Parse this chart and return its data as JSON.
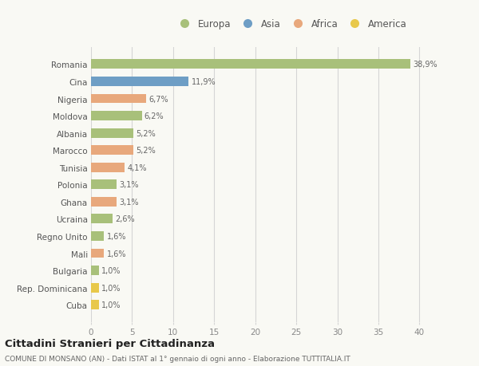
{
  "countries": [
    "Romania",
    "Cina",
    "Nigeria",
    "Moldova",
    "Albania",
    "Marocco",
    "Tunisia",
    "Polonia",
    "Ghana",
    "Ucraina",
    "Regno Unito",
    "Mali",
    "Bulgaria",
    "Rep. Dominicana",
    "Cuba"
  ],
  "values": [
    38.9,
    11.9,
    6.7,
    6.2,
    5.2,
    5.2,
    4.1,
    3.1,
    3.1,
    2.6,
    1.6,
    1.6,
    1.0,
    1.0,
    1.0
  ],
  "labels": [
    "38,9%",
    "11,9%",
    "6,7%",
    "6,2%",
    "5,2%",
    "5,2%",
    "4,1%",
    "3,1%",
    "3,1%",
    "2,6%",
    "1,6%",
    "1,6%",
    "1,0%",
    "1,0%",
    "1,0%"
  ],
  "continents": [
    "Europa",
    "Asia",
    "Africa",
    "Europa",
    "Europa",
    "Africa",
    "Africa",
    "Europa",
    "Africa",
    "Europa",
    "Europa",
    "Africa",
    "Europa",
    "America",
    "America"
  ],
  "continent_colors": {
    "Europa": "#a8c07a",
    "Asia": "#6e9ec5",
    "Africa": "#e8a87c",
    "America": "#e8c84a"
  },
  "legend_items": [
    "Europa",
    "Asia",
    "Africa",
    "America"
  ],
  "legend_colors": [
    "#a8c07a",
    "#6e9ec5",
    "#e8a87c",
    "#e8c84a"
  ],
  "xlim": [
    0,
    42
  ],
  "xticks": [
    0,
    5,
    10,
    15,
    20,
    25,
    30,
    35,
    40
  ],
  "title": "Cittadini Stranieri per Cittadinanza",
  "subtitle": "COMUNE DI MONSANO (AN) - Dati ISTAT al 1° gennaio di ogni anno - Elaborazione TUTTITALIA.IT",
  "background_color": "#f9f9f4",
  "grid_color": "#d5d5d5",
  "bar_height": 0.55
}
